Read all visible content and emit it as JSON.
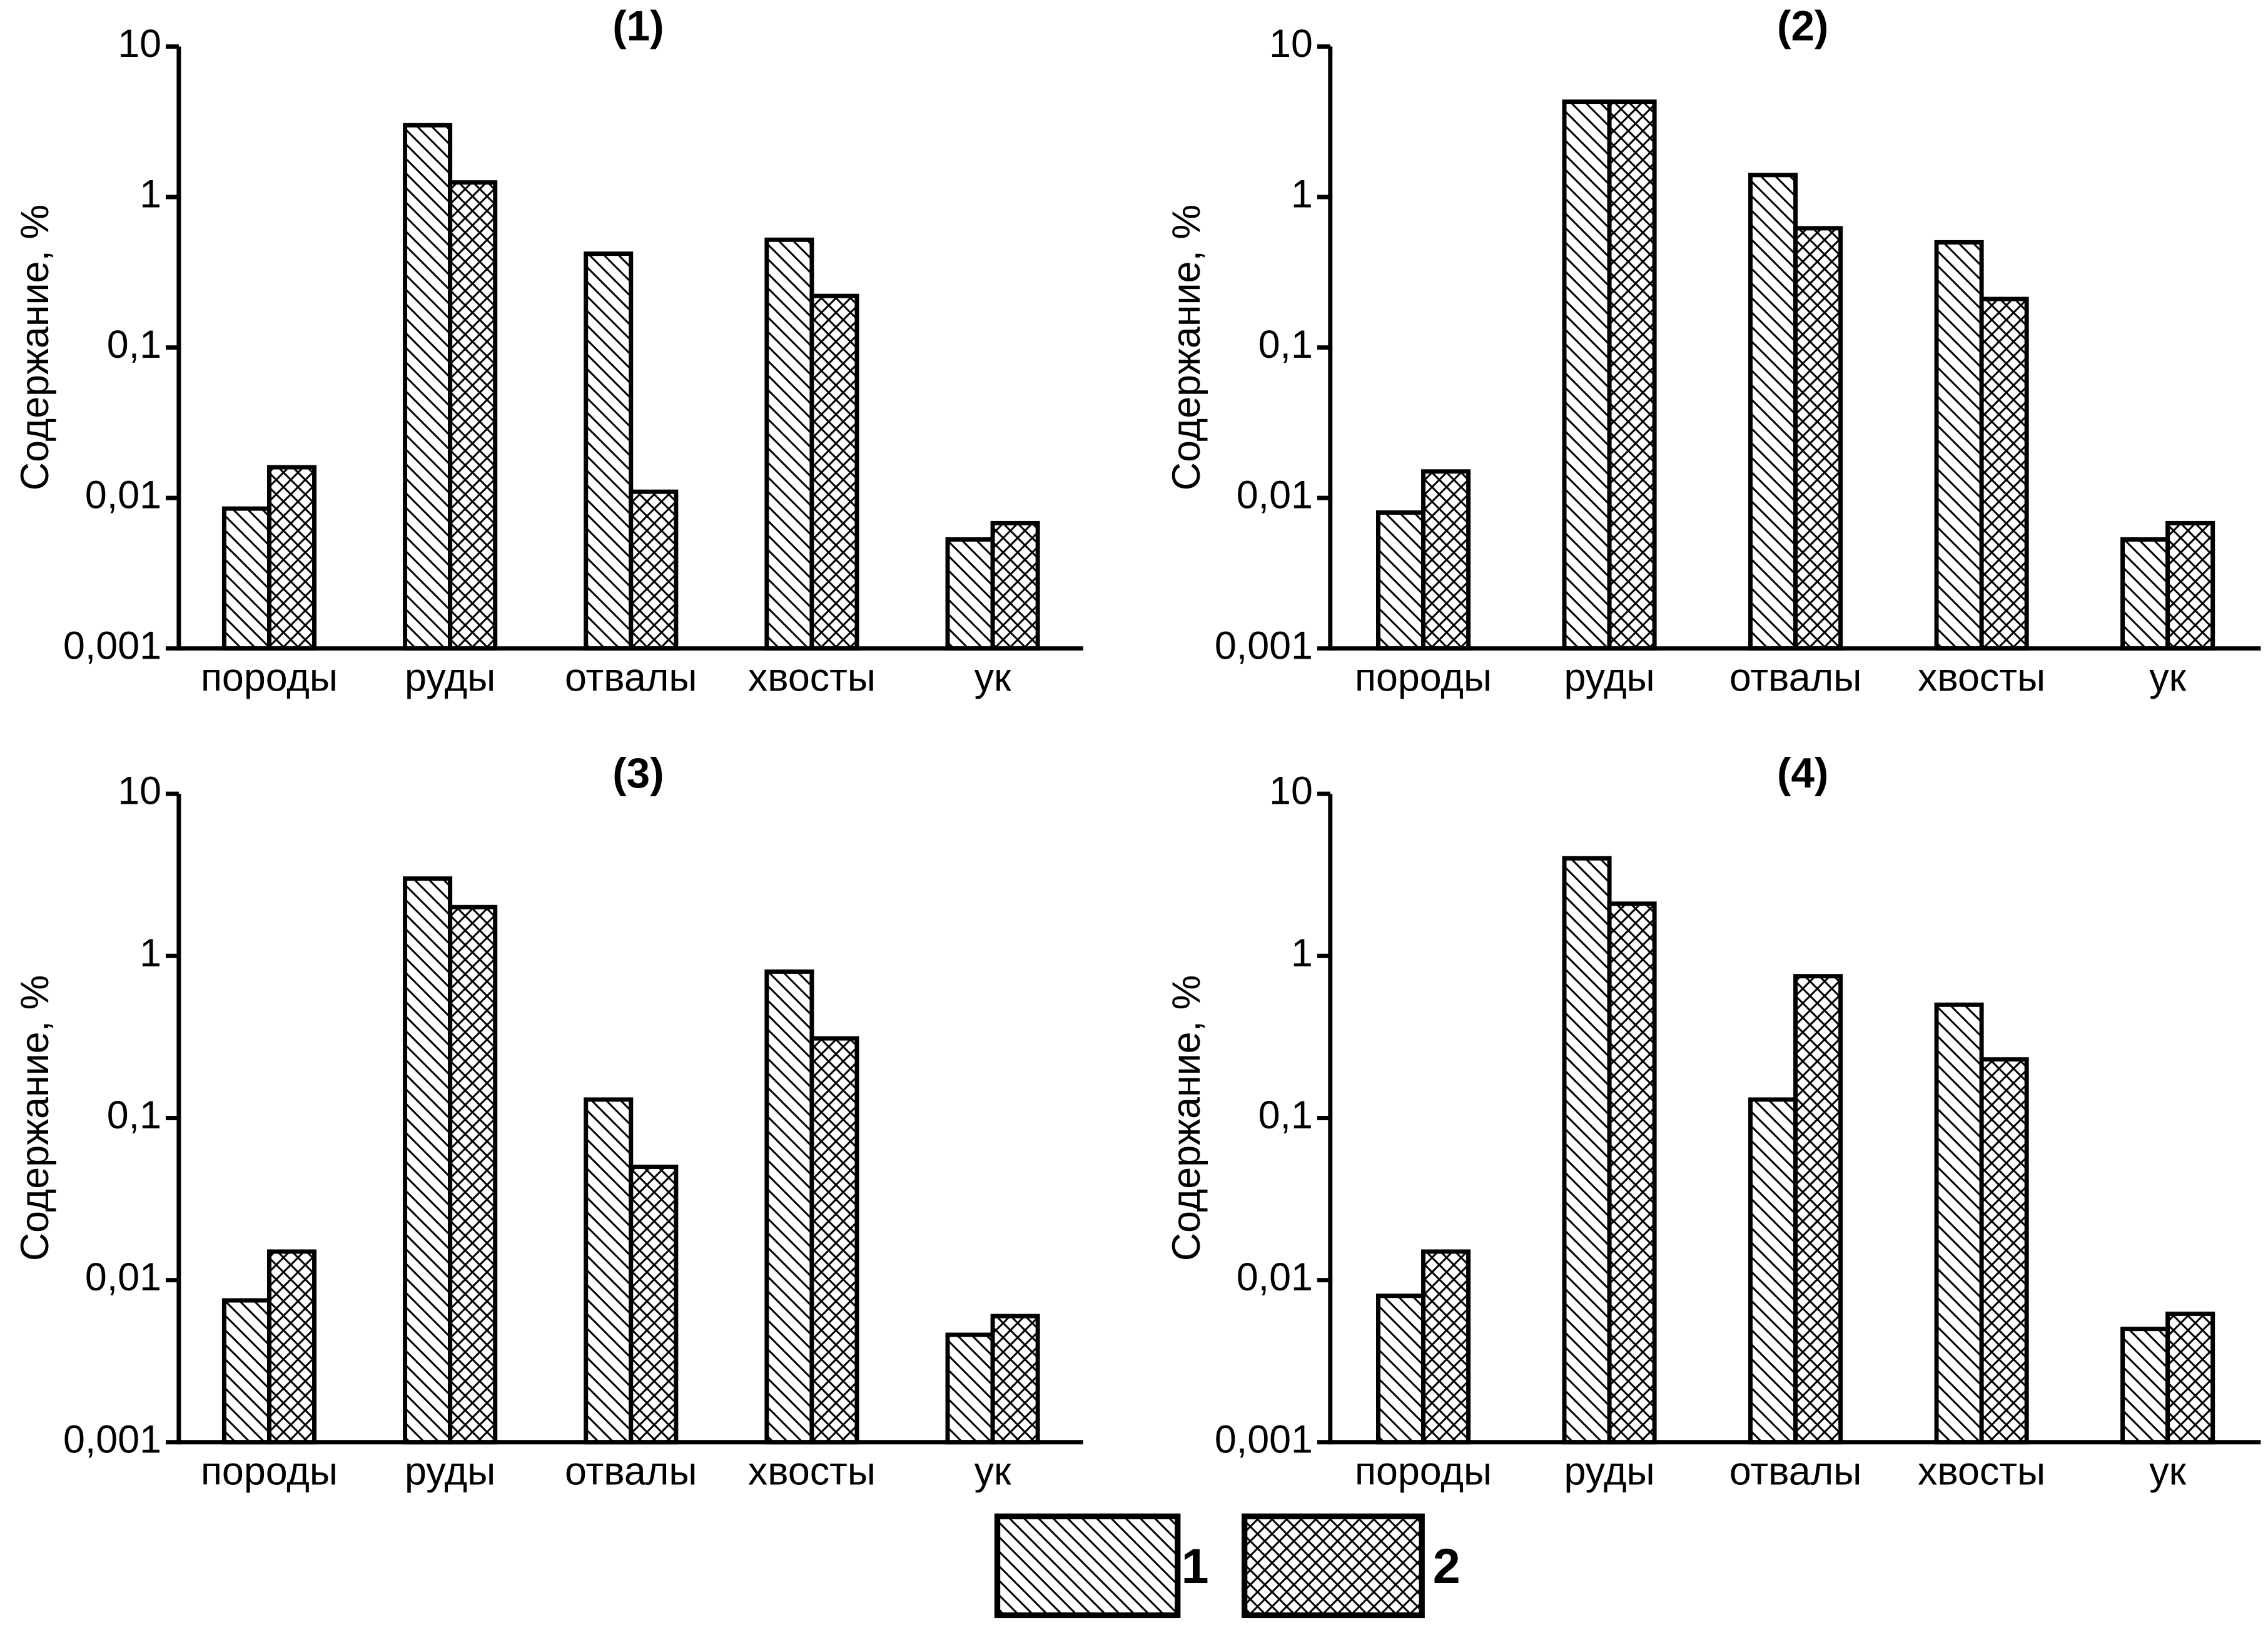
{
  "chart_data": [
    {
      "type": "bar",
      "title": "(1)",
      "ylabel": "Содержание, %",
      "log": true,
      "categories": [
        "породы",
        "руды",
        "отвалы",
        "хвосты",
        "ук"
      ],
      "series": [
        {
          "name": "1",
          "color": "#000000",
          "hatch": "diagonal",
          "values": [
            0.0085,
            3.0,
            0.42,
            0.52,
            0.0053
          ]
        },
        {
          "name": "2",
          "color": "#000000",
          "hatch": "cross",
          "values": [
            0.016,
            1.25,
            0.011,
            0.22,
            0.0068
          ]
        }
      ],
      "ylim": [
        0.001,
        10
      ],
      "yticks": [
        {
          "value": 0.001,
          "label": "0,001"
        },
        {
          "value": 0.01,
          "label": "0,01"
        },
        {
          "value": 0.1,
          "label": "0,1"
        },
        1,
        10
      ]
    },
    {
      "type": "bar",
      "title": "(2)",
      "ylabel": "Содержание, %",
      "log": true,
      "categories": [
        "породы",
        "руды",
        "отвалы",
        "хвосты",
        "ук"
      ],
      "series": [
        {
          "name": "1",
          "color": "#000000",
          "hatch": "diagonal",
          "values": [
            0.008,
            4.3,
            1.4,
            0.5,
            0.0053
          ]
        },
        {
          "name": "2",
          "color": "#000000",
          "hatch": "cross",
          "values": [
            0.015,
            4.3,
            0.62,
            0.21,
            0.0068
          ]
        }
      ],
      "ylim": [
        0.001,
        10
      ],
      "yticks": [
        {
          "value": 0.001,
          "label": "0,001"
        },
        {
          "value": 0.01,
          "label": "0,01"
        },
        {
          "value": 0.1,
          "label": "0,1"
        },
        1,
        10
      ]
    },
    {
      "type": "bar",
      "title": "(3)",
      "ylabel": "Содержание, %",
      "log": true,
      "categories": [
        "породы",
        "руды",
        "отвалы",
        "хвосты",
        "ук"
      ],
      "series": [
        {
          "name": "1",
          "color": "#000000",
          "hatch": "diagonal",
          "values": [
            0.0075,
            3.0,
            0.13,
            0.8,
            0.0046
          ]
        },
        {
          "name": "2",
          "color": "#000000",
          "hatch": "cross",
          "values": [
            0.015,
            2.0,
            0.05,
            0.31,
            0.006
          ]
        }
      ],
      "ylim": [
        0.001,
        10
      ],
      "yticks": [
        {
          "value": 0.001,
          "label": "0,001"
        },
        {
          "value": 0.01,
          "label": "0,01"
        },
        {
          "value": 0.1,
          "label": "0,1"
        },
        1,
        10
      ]
    },
    {
      "type": "bar",
      "title": "(4)",
      "ylabel": "Содержание, %",
      "log": true,
      "categories": [
        "породы",
        "руды",
        "отвалы",
        "хвосты",
        "ук"
      ],
      "series": [
        {
          "name": "1",
          "color": "#000000",
          "hatch": "diagonal",
          "values": [
            0.008,
            4.0,
            0.13,
            0.5,
            0.005
          ]
        },
        {
          "name": "2",
          "color": "#000000",
          "hatch": "cross",
          "values": [
            0.015,
            2.1,
            0.75,
            0.23,
            0.0062
          ]
        }
      ],
      "ylim": [
        0.001,
        10
      ],
      "yticks": [
        {
          "value": 0.001,
          "label": "0,001"
        },
        {
          "value": 0.01,
          "label": "0,01"
        },
        {
          "value": 0.1,
          "label": "0,1"
        },
        1,
        10
      ]
    }
  ]
}
